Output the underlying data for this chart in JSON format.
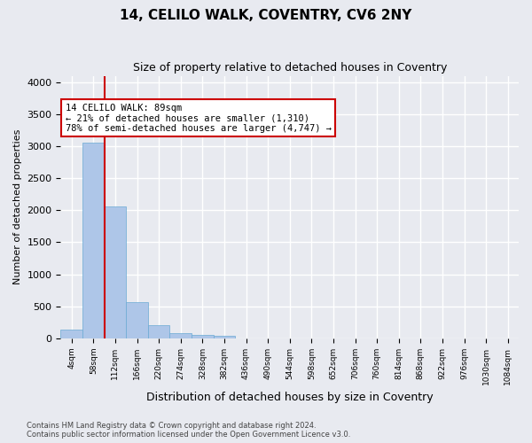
{
  "title": "14, CELILO WALK, COVENTRY, CV6 2NY",
  "subtitle": "Size of property relative to detached houses in Coventry",
  "xlabel": "Distribution of detached houses by size in Coventry",
  "ylabel": "Number of detached properties",
  "bar_color": "#aec6e8",
  "bar_edge_color": "#6aaad4",
  "background_color": "#e8eaf0",
  "grid_color": "#ffffff",
  "bin_labels": [
    "4sqm",
    "58sqm",
    "112sqm",
    "166sqm",
    "220sqm",
    "274sqm",
    "328sqm",
    "382sqm",
    "436sqm",
    "490sqm",
    "544sqm",
    "598sqm",
    "652sqm",
    "706sqm",
    "760sqm",
    "814sqm",
    "868sqm",
    "922sqm",
    "976sqm",
    "1030sqm",
    "1084sqm"
  ],
  "bar_values": [
    130,
    3060,
    2060,
    560,
    200,
    80,
    55,
    40,
    0,
    0,
    0,
    0,
    0,
    0,
    0,
    0,
    0,
    0,
    0,
    0,
    0
  ],
  "ylim": [
    0,
    4100
  ],
  "yticks": [
    0,
    500,
    1000,
    1500,
    2000,
    2500,
    3000,
    3500,
    4000
  ],
  "vline_x": 1.5,
  "annotation_title": "14 CELILO WALK: 89sqm",
  "annotation_line1": "← 21% of detached houses are smaller (1,310)",
  "annotation_line2": "78% of semi-detached houses are larger (4,747) →",
  "annotation_box_color": "#ffffff",
  "annotation_border_color": "#cc0000",
  "vline_color": "#cc0000",
  "footer_line1": "Contains HM Land Registry data © Crown copyright and database right 2024.",
  "footer_line2": "Contains public sector information licensed under the Open Government Licence v3.0."
}
